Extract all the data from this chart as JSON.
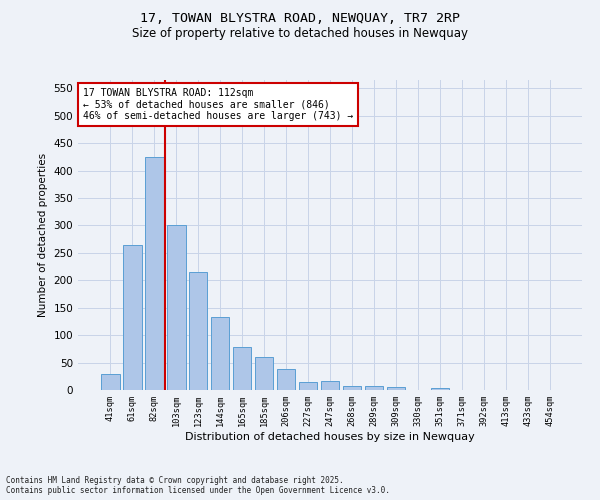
{
  "title_line1": "17, TOWAN BLYSTRA ROAD, NEWQUAY, TR7 2RP",
  "title_line2": "Size of property relative to detached houses in Newquay",
  "xlabel": "Distribution of detached houses by size in Newquay",
  "ylabel": "Number of detached properties",
  "footnote1": "Contains HM Land Registry data © Crown copyright and database right 2025.",
  "footnote2": "Contains public sector information licensed under the Open Government Licence v3.0.",
  "bin_labels": [
    "41sqm",
    "61sqm",
    "82sqm",
    "103sqm",
    "123sqm",
    "144sqm",
    "165sqm",
    "185sqm",
    "206sqm",
    "227sqm",
    "247sqm",
    "268sqm",
    "289sqm",
    "309sqm",
    "330sqm",
    "351sqm",
    "371sqm",
    "392sqm",
    "413sqm",
    "433sqm",
    "454sqm"
  ],
  "bar_values": [
    30,
    265,
    425,
    300,
    215,
    133,
    78,
    60,
    38,
    15,
    17,
    8,
    8,
    5,
    0,
    4,
    0,
    0,
    0,
    0,
    0
  ],
  "bar_color": "#aec6e8",
  "bar_edgecolor": "#5a9fd4",
  "vline_bin": 3,
  "vline_color": "#cc0000",
  "annotation_text": "17 TOWAN BLYSTRA ROAD: 112sqm\n← 53% of detached houses are smaller (846)\n46% of semi-detached houses are larger (743) →",
  "annotation_box_edgecolor": "#cc0000",
  "annotation_box_facecolor": "#ffffff",
  "ylim": [
    0,
    565
  ],
  "yticks": [
    0,
    50,
    100,
    150,
    200,
    250,
    300,
    350,
    400,
    450,
    500,
    550
  ],
  "background_color": "#eef2f8",
  "grid_color": "#c8d4e8"
}
